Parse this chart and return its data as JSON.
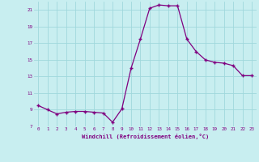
{
  "x": [
    0,
    1,
    2,
    3,
    4,
    5,
    6,
    7,
    8,
    9,
    10,
    11,
    12,
    13,
    14,
    15,
    16,
    17,
    18,
    19,
    20,
    21,
    22,
    23
  ],
  "y": [
    9.5,
    9.0,
    8.5,
    8.7,
    8.8,
    8.8,
    8.7,
    8.6,
    7.5,
    9.1,
    14.0,
    17.5,
    21.2,
    21.6,
    21.5,
    21.5,
    17.5,
    16.0,
    15.0,
    14.7,
    14.6,
    14.3,
    13.1,
    13.1
  ],
  "line_color": "#800080",
  "marker": "+",
  "marker_size": 3,
  "bg_color": "#c8eef0",
  "grid_color": "#a0d8dc",
  "xlabel": "Windchill (Refroidissement éolien,°C)",
  "xlabel_color": "#800080",
  "tick_color": "#800080",
  "ylim": [
    7,
    22
  ],
  "xlim": [
    -0.5,
    23.5
  ],
  "yticks": [
    7,
    9,
    11,
    13,
    15,
    17,
    19,
    21
  ],
  "xticks": [
    0,
    1,
    2,
    3,
    4,
    5,
    6,
    7,
    8,
    9,
    10,
    11,
    12,
    13,
    14,
    15,
    16,
    17,
    18,
    19,
    20,
    21,
    22,
    23
  ]
}
